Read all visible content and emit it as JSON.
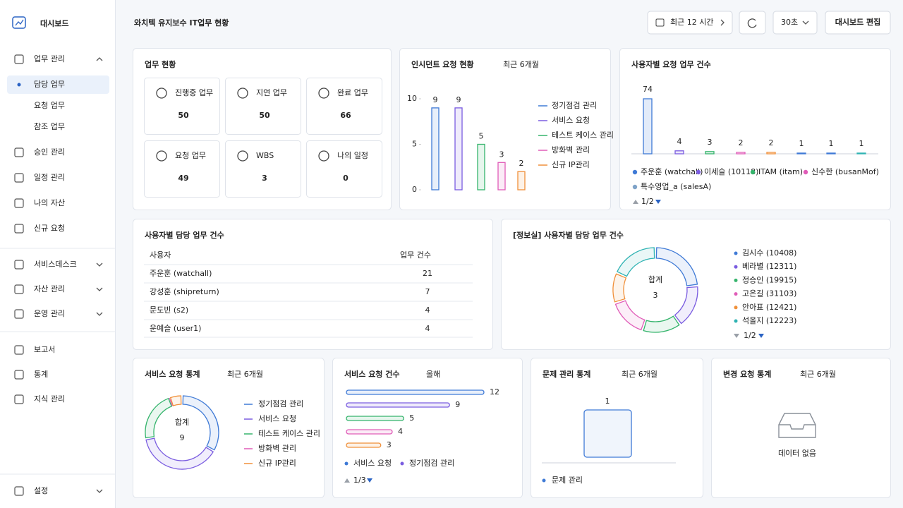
{
  "sidebar": {
    "brand": "대시보드",
    "items": [
      {
        "label": "업무 관리",
        "children": [
          "담당 업무",
          "요청 업무",
          "참조 업무"
        ]
      },
      {
        "label": "승인 관리"
      },
      {
        "label": "일정 관리"
      },
      {
        "label": "나의 자산"
      },
      {
        "label": "신규 요청"
      },
      {
        "label": "서비스데스크"
      },
      {
        "label": "자산 관리"
      },
      {
        "label": "운영 관리"
      },
      {
        "label": "보고서"
      },
      {
        "label": "통계"
      },
      {
        "label": "지식 관리"
      },
      {
        "label": "설정"
      }
    ]
  },
  "header": {
    "title": "와치텍 유지보수 IT업무 현황",
    "time_range": "최근 12 시간",
    "refresh_interval": "30초",
    "edit_button": "대시보드 편집"
  },
  "work_status": {
    "title": "업무 현황",
    "tiles": [
      {
        "label": "진행중 업무",
        "value": 50
      },
      {
        "label": "지연 업무",
        "value": 50
      },
      {
        "label": "완료 업무",
        "value": 66
      },
      {
        "label": "요청 업무",
        "value": 49
      },
      {
        "label": "WBS",
        "value": 3
      },
      {
        "label": "나의 일정",
        "value": 0
      }
    ]
  },
  "incident_requests": {
    "type": "bar",
    "title": "인시던트 요청 현황",
    "subtitle": "최근 6개월",
    "ylim": [
      0,
      10
    ],
    "yticks": [
      0,
      5,
      10
    ],
    "series": [
      {
        "name": "정기점검 관리",
        "color": "#3f7ad6",
        "values": [
          9
        ]
      },
      {
        "name": "서비스 요청",
        "color": "#7a5ce0",
        "values": [
          9
        ]
      },
      {
        "name": "테스트 케이스 관리",
        "color": "#35b46c",
        "values": [
          5
        ]
      },
      {
        "name": "방화벽 관리",
        "color": "#e05cb8",
        "values": [
          3
        ]
      },
      {
        "name": "신규 IP관리",
        "color": "#f0903a",
        "values": [
          2
        ]
      }
    ]
  },
  "user_requests": {
    "type": "bar",
    "title": "사용자별 요청 업무 건수",
    "values": [
      74,
      4,
      3,
      2,
      2,
      1,
      1,
      1
    ],
    "colors": [
      "#3f7ad6",
      "#7a5ce0",
      "#35b46c",
      "#e05cb8",
      "#f0903a",
      "#3f7ad6",
      "#3f7ad6",
      "#2fb3b3"
    ],
    "legend": [
      {
        "name": "주운훈 (watchall)",
        "color": "#3f7ad6"
      },
      {
        "name": "이세슬 (10118)",
        "color": "#7a5ce0"
      },
      {
        "name": "ITAM (itam)",
        "color": "#35b46c"
      },
      {
        "name": "신수한 (busanMof)",
        "color": "#e05cb8"
      },
      {
        "name": "특수영업_a (salesA)",
        "color": "#7fa3c8"
      }
    ],
    "legend_page": "1/2"
  },
  "user_assignments": {
    "title": "사용자별 담당 업무 건수",
    "columns": [
      "사용자",
      "업무 건수"
    ],
    "rows": [
      [
        "주운훈 (watchall)",
        21
      ],
      [
        "강성훈 (shipreturn)",
        7
      ],
      [
        "문도빈 (s2)",
        4
      ],
      [
        "운예슬 (user1)",
        4
      ]
    ]
  },
  "info_assignments": {
    "type": "pie",
    "title": "[정보실] 사용자별 담당 업무 건수",
    "total_label": "합계",
    "total": 3,
    "series": [
      {
        "name": "김시수 (10408)",
        "color": "#3f7ad6",
        "value": 0.7
      },
      {
        "name": "베라별 (12311)",
        "color": "#7a5ce0",
        "value": 0.5
      },
      {
        "name": "정승인 (19915)",
        "color": "#35b46c",
        "value": 0.45
      },
      {
        "name": "고은길 (31103)",
        "color": "#e05cb8",
        "value": 0.45
      },
      {
        "name": "안아표 (12421)",
        "color": "#f0903a",
        "value": 0.35
      },
      {
        "name": "석올지 (12223)",
        "color": "#2fb3b3",
        "value": 0.55
      }
    ],
    "legend_page": "1/2"
  },
  "service_stats": {
    "type": "pie",
    "title": "서비스 요청 통계",
    "subtitle": "최근 6개월",
    "total_label": "합계",
    "total": 9,
    "series": [
      {
        "name": "정기점검 관리",
        "color": "#3f7ad6",
        "value": 3
      },
      {
        "name": "서비스 요청",
        "color": "#7a5ce0",
        "value": 3.5
      },
      {
        "name": "테스트 케이스 관리",
        "color": "#35b46c",
        "value": 2
      },
      {
        "name": "방화벽 관리",
        "color": "#e05cb8",
        "value": 0
      },
      {
        "name": "신규 IP관리",
        "color": "#f0903a",
        "value": 0.5
      }
    ]
  },
  "service_counts": {
    "type": "bar",
    "orientation": "horizontal",
    "title": "서비스 요청 건수",
    "subtitle": "올해",
    "values": [
      12,
      9,
      5,
      4,
      3
    ],
    "colors": [
      "#3f7ad6",
      "#7a5ce0",
      "#35b46c",
      "#e05cb8",
      "#f0903a"
    ],
    "legend": [
      {
        "name": "서비스 요청",
        "color": "#3f7ad6"
      },
      {
        "name": "정기점검 관리",
        "color": "#7a5ce0"
      }
    ],
    "legend_page": "1/3"
  },
  "problem_stats": {
    "type": "bar",
    "title": "문제 관리 통계",
    "subtitle": "최근 6개월",
    "values": [
      1
    ],
    "legend": [
      {
        "name": "문제 관리",
        "color": "#3f7ad6"
      }
    ]
  },
  "change_stats": {
    "title": "변경 요청 통계",
    "subtitle": "최근 6개월",
    "empty_text": "데이터 없음"
  }
}
